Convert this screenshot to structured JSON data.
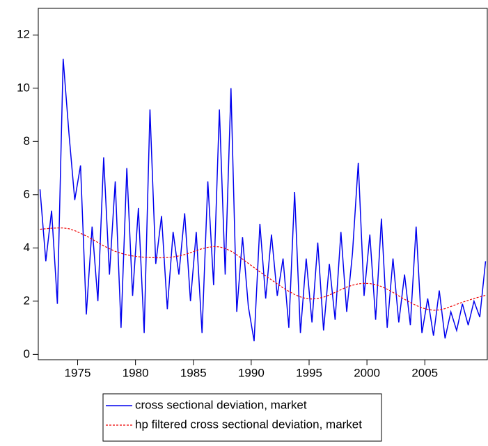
{
  "chart_data": {
    "type": "line",
    "x": [
      1971.75,
      1972.25,
      1972.75,
      1973.25,
      1973.75,
      1974.25,
      1974.75,
      1975.25,
      1975.75,
      1976.25,
      1976.75,
      1977.25,
      1977.75,
      1978.25,
      1978.75,
      1979.25,
      1979.75,
      1980.25,
      1980.75,
      1981.25,
      1981.75,
      1982.25,
      1982.75,
      1983.25,
      1983.75,
      1984.25,
      1984.75,
      1985.25,
      1985.75,
      1986.25,
      1986.75,
      1987.25,
      1987.75,
      1988.25,
      1988.75,
      1989.25,
      1989.75,
      1990.25,
      1990.75,
      1991.25,
      1991.75,
      1992.25,
      1992.75,
      1993.25,
      1993.75,
      1994.25,
      1994.75,
      1995.25,
      1995.75,
      1996.25,
      1996.75,
      1997.25,
      1997.75,
      1998.25,
      1998.75,
      1999.25,
      1999.75,
      2000.25,
      2000.75,
      2001.25,
      2001.75,
      2002.25,
      2002.75,
      2003.25,
      2003.75,
      2004.25,
      2004.75,
      2005.25,
      2005.75,
      2006.25,
      2006.75,
      2007.25,
      2007.75,
      2008.25,
      2008.75,
      2009.25,
      2009.75,
      2010.25
    ],
    "series": [
      {
        "name": "cross sectional deviation, market",
        "color": "#0000ee",
        "dashed": false,
        "values": [
          6.2,
          3.5,
          5.4,
          1.9,
          11.1,
          8.3,
          5.8,
          7.1,
          1.5,
          4.8,
          2.0,
          7.4,
          3.0,
          6.5,
          1.0,
          7.0,
          2.2,
          5.5,
          0.8,
          9.2,
          3.4,
          5.2,
          1.7,
          4.6,
          3.0,
          5.3,
          2.0,
          4.6,
          0.8,
          6.5,
          2.6,
          9.2,
          3.0,
          10.0,
          1.6,
          4.4,
          1.8,
          0.5,
          4.9,
          2.1,
          4.5,
          2.2,
          3.6,
          1.0,
          6.1,
          0.8,
          3.6,
          1.2,
          4.2,
          0.9,
          3.4,
          1.3,
          4.6,
          1.6,
          3.8,
          7.2,
          2.2,
          4.5,
          1.3,
          5.1,
          1.0,
          3.6,
          1.2,
          3.0,
          1.1,
          4.8,
          0.8,
          2.1,
          0.7,
          2.4,
          0.6,
          1.6,
          0.9,
          1.9,
          1.1,
          2.0,
          1.4,
          3.5
        ]
      },
      {
        "name": "hp filtered cross sectional deviation, market",
        "color": "#ee0000",
        "dashed": true,
        "values": [
          4.7,
          4.72,
          4.74,
          4.75,
          4.75,
          4.72,
          4.65,
          4.55,
          4.45,
          4.33,
          4.2,
          4.08,
          3.97,
          3.87,
          3.8,
          3.74,
          3.7,
          3.67,
          3.65,
          3.64,
          3.63,
          3.63,
          3.64,
          3.66,
          3.7,
          3.75,
          3.82,
          3.9,
          3.97,
          4.02,
          4.05,
          4.04,
          3.98,
          3.88,
          3.74,
          3.58,
          3.42,
          3.26,
          3.1,
          2.95,
          2.8,
          2.65,
          2.5,
          2.37,
          2.25,
          2.16,
          2.1,
          2.08,
          2.1,
          2.15,
          2.23,
          2.33,
          2.43,
          2.53,
          2.6,
          2.65,
          2.67,
          2.66,
          2.62,
          2.55,
          2.45,
          2.33,
          2.2,
          2.07,
          1.95,
          1.84,
          1.75,
          1.69,
          1.66,
          1.67,
          1.72,
          1.8,
          1.88,
          1.96,
          2.03,
          2.1,
          2.16,
          2.22
        ]
      }
    ],
    "xlim": [
      1971.6,
      2010.4
    ],
    "xticks": [
      1975,
      1980,
      1985,
      1990,
      1995,
      2000,
      2005
    ],
    "ylim": [
      -0.2,
      13
    ],
    "yticks": [
      0,
      2,
      4,
      6,
      8,
      10,
      12
    ],
    "legend": "bottom"
  }
}
